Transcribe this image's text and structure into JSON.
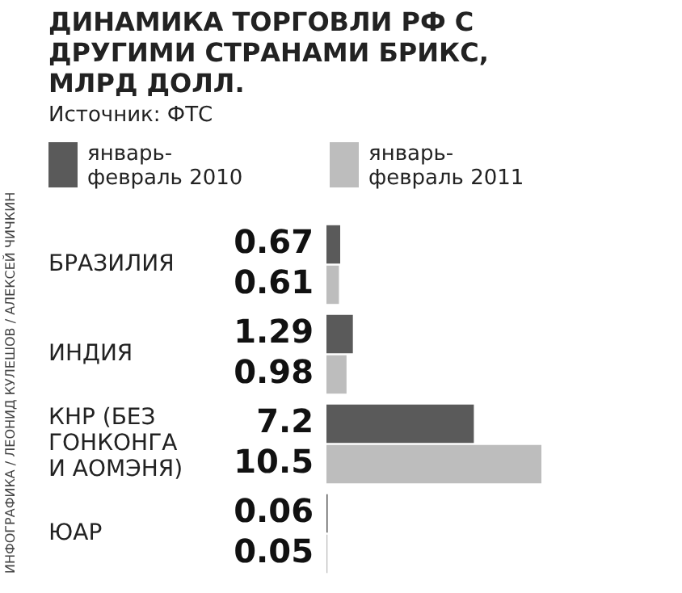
{
  "chart_data": {
    "type": "bar",
    "orientation": "horizontal",
    "title": "ДИНАМИКА ТОРГОВЛИ РФ С ДРУГИМИ СТРАНАМИ БРИКС, МЛРД ДОЛЛ.",
    "annotations": [
      "Источник: ФТС",
      "ИНФОГРАФИКА / ЛЕОНИД КУЛЕШОВ / АЛЕКСЕЙ ЧИЧКИН"
    ],
    "categories": [
      "БРАЗИЛИЯ",
      "ИНДИЯ",
      "КНР (БЕЗ ГОНКОНГА И АОМЭНЯ)",
      "ЮАР"
    ],
    "series": [
      {
        "name": "январь-февраль 2010",
        "color": "#5a5a5a",
        "values": [
          0.67,
          1.29,
          7.2,
          0.06
        ]
      },
      {
        "name": "январь-февраль 2011",
        "color": "#bdbdbd",
        "values": [
          0.61,
          0.98,
          10.5,
          0.05
        ]
      }
    ],
    "data_labels": true,
    "legend": "top"
  }
}
